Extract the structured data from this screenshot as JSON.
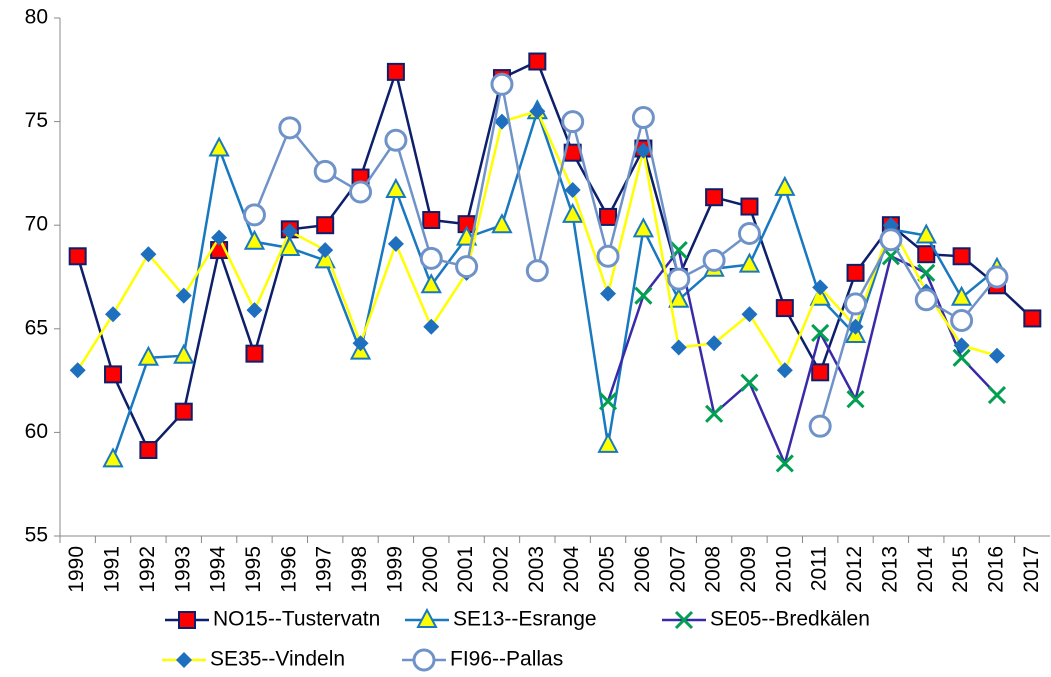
{
  "chart_data": {
    "type": "line",
    "categories": [
      "1990",
      "1991",
      "1992",
      "1993",
      "1994",
      "1995",
      "1996",
      "1997",
      "1998",
      "1999",
      "2000",
      "2001",
      "2002",
      "2003",
      "2004",
      "2005",
      "2006",
      "2007",
      "2008",
      "2009",
      "2010",
      "2011",
      "2012",
      "2013",
      "2014",
      "2015",
      "2016",
      "2017"
    ],
    "ylim": [
      55,
      80
    ],
    "yticks": [
      55,
      60,
      65,
      70,
      75,
      80
    ],
    "grid": false,
    "legend": "bottom",
    "series": [
      {
        "name": "NO15--Tustervatn",
        "color": "#0d1f6b",
        "marker": "square",
        "marker_color": "#ff0000",
        "values": [
          68.5,
          62.8,
          59.15,
          61.0,
          68.8,
          63.8,
          69.8,
          70.0,
          72.3,
          77.4,
          70.25,
          70.05,
          77.1,
          77.9,
          73.5,
          70.4,
          73.7,
          67.5,
          71.35,
          70.9,
          66.0,
          62.9,
          67.7,
          70.0,
          68.6,
          68.5,
          67.1,
          65.5
        ]
      },
      {
        "name": "SE13--Esrange",
        "color": "#1878c0",
        "marker": "triangle",
        "marker_color": "#ffff00",
        "values": [
          null,
          58.7,
          63.6,
          63.7,
          73.7,
          69.2,
          68.9,
          68.3,
          63.9,
          71.7,
          67.1,
          69.4,
          70.0,
          75.5,
          70.5,
          59.4,
          69.8,
          66.4,
          67.9,
          68.1,
          71.8,
          66.5,
          64.7,
          69.8,
          69.5,
          66.5,
          67.9,
          null
        ]
      },
      {
        "name": "SE05--Bredkälen",
        "color": "#3a2aa8",
        "marker": "x",
        "marker_color": "#00a050",
        "values": [
          null,
          null,
          null,
          null,
          null,
          null,
          null,
          null,
          null,
          null,
          null,
          null,
          null,
          null,
          null,
          61.5,
          66.6,
          68.8,
          60.9,
          62.4,
          58.5,
          64.8,
          61.6,
          68.5,
          67.7,
          63.6,
          61.8,
          null
        ]
      },
      {
        "name": "SE35--Vindeln",
        "color": "#ffff00",
        "marker": "diamond",
        "marker_color": "#1f6fbf",
        "values": [
          63.0,
          65.7,
          68.6,
          66.6,
          69.4,
          65.9,
          69.7,
          68.8,
          64.3,
          69.1,
          65.1,
          67.7,
          75.0,
          75.5,
          71.7,
          66.7,
          73.6,
          64.1,
          64.3,
          65.7,
          63.0,
          67.0,
          65.1,
          70.0,
          66.8,
          64.2,
          63.7,
          null
        ]
      },
      {
        "name": "FI96--Pallas",
        "color": "#6f93c9",
        "marker": "circle",
        "marker_color": "#ffffff",
        "values": [
          null,
          null,
          null,
          null,
          null,
          70.5,
          74.7,
          72.6,
          71.6,
          74.1,
          68.4,
          68.0,
          76.8,
          67.8,
          75.0,
          68.5,
          75.2,
          67.4,
          68.3,
          69.6,
          null,
          60.3,
          66.2,
          69.3,
          66.4,
          65.4,
          67.5,
          null
        ]
      }
    ]
  }
}
